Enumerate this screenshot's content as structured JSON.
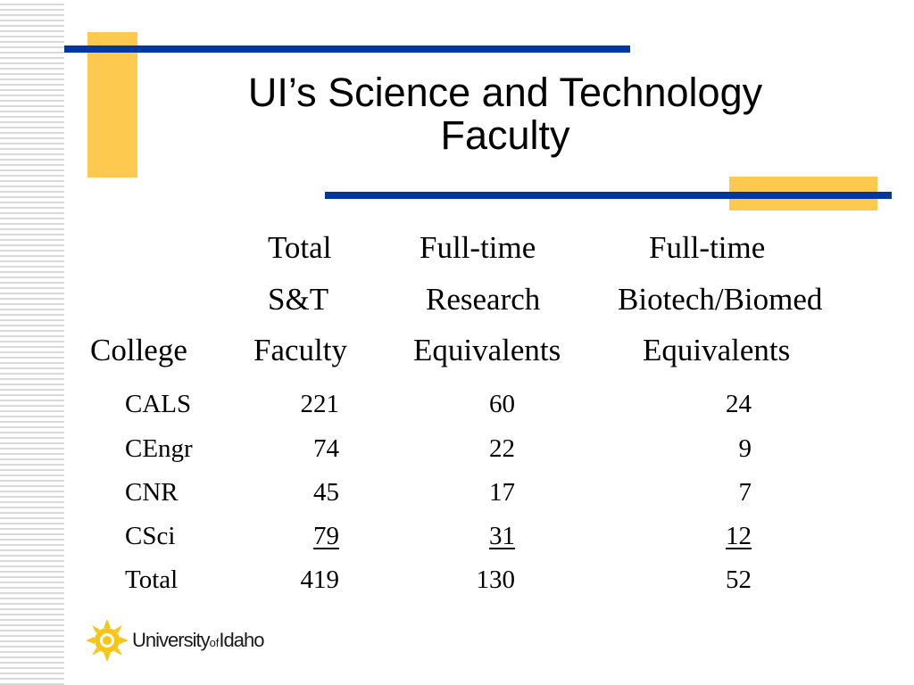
{
  "slide": {
    "title_line1": "UI’s Science and Technology",
    "title_line2": "Faculty",
    "accent_colors": {
      "blue": "#0037a0",
      "yellow": "#fdc94f",
      "stripe_gray": "#d9d9d9"
    }
  },
  "table": {
    "headers": {
      "college": "College",
      "col1": [
        "Total",
        "S&T",
        "Faculty"
      ],
      "col2": [
        "Full-time",
        "Research",
        "Equivalents"
      ],
      "col3": [
        "Full-time",
        "Biotech/Biomed",
        "Equivalents"
      ]
    },
    "rows": [
      {
        "college": "CALS",
        "total": "221",
        "research": "60",
        "biotech": "24"
      },
      {
        "college": "CEngr",
        "total": "74",
        "research": "22",
        "biotech": "9"
      },
      {
        "college": "CNR",
        "total": "45",
        "research": "17",
        "biotech": "7"
      },
      {
        "college": "CSci",
        "total": "79",
        "research": "31",
        "biotech": "12"
      },
      {
        "college": "Total",
        "total": "419",
        "research": "130",
        "biotech": "52"
      }
    ]
  },
  "logo": {
    "icon": "sun-seal-icon",
    "text_part1": "University",
    "text_part2": "of",
    "text_part3": "Idaho"
  }
}
